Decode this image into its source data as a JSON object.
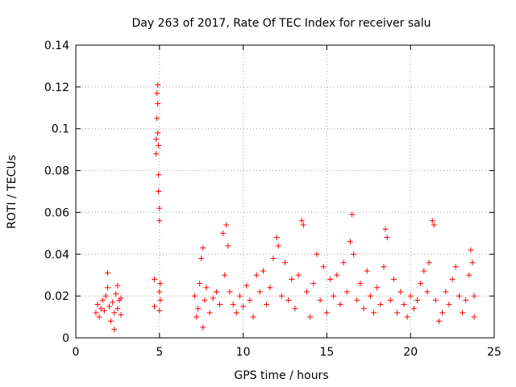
{
  "chart_data": {
    "type": "scatter",
    "title": "Day 263 of 2017, Rate Of TEC Index for receiver salu",
    "xlabel": "GPS time / hours",
    "ylabel": "ROTI / TECUs",
    "xlim": [
      0,
      25
    ],
    "ylim": [
      0,
      0.14
    ],
    "xticks": [
      0,
      5,
      10,
      15,
      20,
      25
    ],
    "xtick_labels": [
      "0",
      "5",
      "10",
      "15",
      "20",
      "25"
    ],
    "yticks": [
      0,
      0.02,
      0.04,
      0.06,
      0.08,
      0.1,
      0.12,
      0.14
    ],
    "ytick_labels": [
      "0",
      "0.02",
      "0.04",
      "0.06",
      "0.08",
      "0.1",
      "0.12",
      "0.14"
    ],
    "grid": true,
    "marker": "plus",
    "color": "#ff0000",
    "series": [
      {
        "name": "ROTI",
        "points": [
          [
            1.2,
            0.012
          ],
          [
            1.3,
            0.016
          ],
          [
            1.4,
            0.01
          ],
          [
            1.5,
            0.014
          ],
          [
            1.6,
            0.018
          ],
          [
            1.7,
            0.013
          ],
          [
            1.8,
            0.02
          ],
          [
            1.9,
            0.024
          ],
          [
            1.9,
            0.031
          ],
          [
            2.0,
            0.015
          ],
          [
            2.1,
            0.008
          ],
          [
            2.2,
            0.017
          ],
          [
            2.3,
            0.004
          ],
          [
            2.3,
            0.012
          ],
          [
            2.4,
            0.021
          ],
          [
            2.5,
            0.014
          ],
          [
            2.5,
            0.025
          ],
          [
            2.6,
            0.018
          ],
          [
            2.7,
            0.011
          ],
          [
            2.7,
            0.019
          ],
          [
            4.7,
            0.028
          ],
          [
            4.7,
            0.015
          ],
          [
            4.8,
            0.095
          ],
          [
            4.8,
            0.088
          ],
          [
            4.85,
            0.105
          ],
          [
            4.85,
            0.117
          ],
          [
            4.9,
            0.121
          ],
          [
            4.9,
            0.112
          ],
          [
            4.9,
            0.098
          ],
          [
            4.95,
            0.092
          ],
          [
            4.95,
            0.078
          ],
          [
            4.95,
            0.07
          ],
          [
            5.0,
            0.062
          ],
          [
            5.0,
            0.056
          ],
          [
            5.0,
            0.022
          ],
          [
            5.0,
            0.013
          ],
          [
            5.05,
            0.018
          ],
          [
            5.05,
            0.026
          ],
          [
            7.1,
            0.02
          ],
          [
            7.2,
            0.01
          ],
          [
            7.3,
            0.014
          ],
          [
            7.4,
            0.026
          ],
          [
            7.5,
            0.038
          ],
          [
            7.6,
            0.043
          ],
          [
            7.6,
            0.005
          ],
          [
            7.7,
            0.018
          ],
          [
            7.8,
            0.024
          ],
          [
            8.0,
            0.012
          ],
          [
            8.2,
            0.019
          ],
          [
            8.4,
            0.022
          ],
          [
            8.6,
            0.016
          ],
          [
            8.8,
            0.05
          ],
          [
            8.9,
            0.03
          ],
          [
            9.0,
            0.054
          ],
          [
            9.1,
            0.044
          ],
          [
            9.2,
            0.022
          ],
          [
            9.4,
            0.016
          ],
          [
            9.6,
            0.012
          ],
          [
            9.8,
            0.02
          ],
          [
            10.0,
            0.015
          ],
          [
            10.2,
            0.025
          ],
          [
            10.4,
            0.018
          ],
          [
            10.6,
            0.01
          ],
          [
            10.8,
            0.03
          ],
          [
            11.0,
            0.022
          ],
          [
            11.2,
            0.032
          ],
          [
            11.4,
            0.016
          ],
          [
            11.6,
            0.024
          ],
          [
            11.8,
            0.038
          ],
          [
            12.0,
            0.048
          ],
          [
            12.1,
            0.044
          ],
          [
            12.3,
            0.02
          ],
          [
            12.5,
            0.036
          ],
          [
            12.7,
            0.018
          ],
          [
            12.9,
            0.028
          ],
          [
            13.1,
            0.014
          ],
          [
            13.3,
            0.03
          ],
          [
            13.5,
            0.056
          ],
          [
            13.6,
            0.054
          ],
          [
            13.8,
            0.022
          ],
          [
            14.0,
            0.01
          ],
          [
            14.2,
            0.026
          ],
          [
            14.4,
            0.04
          ],
          [
            14.6,
            0.018
          ],
          [
            14.8,
            0.034
          ],
          [
            15.0,
            0.012
          ],
          [
            15.2,
            0.028
          ],
          [
            15.4,
            0.02
          ],
          [
            15.6,
            0.03
          ],
          [
            15.8,
            0.016
          ],
          [
            16.0,
            0.036
          ],
          [
            16.2,
            0.022
          ],
          [
            16.4,
            0.046
          ],
          [
            16.5,
            0.059
          ],
          [
            16.6,
            0.04
          ],
          [
            16.8,
            0.018
          ],
          [
            17.0,
            0.026
          ],
          [
            17.2,
            0.014
          ],
          [
            17.4,
            0.032
          ],
          [
            17.6,
            0.02
          ],
          [
            17.8,
            0.012
          ],
          [
            18.0,
            0.024
          ],
          [
            18.2,
            0.016
          ],
          [
            18.4,
            0.034
          ],
          [
            18.5,
            0.052
          ],
          [
            18.6,
            0.048
          ],
          [
            18.8,
            0.018
          ],
          [
            19.0,
            0.028
          ],
          [
            19.2,
            0.012
          ],
          [
            19.4,
            0.022
          ],
          [
            19.6,
            0.016
          ],
          [
            19.8,
            0.01
          ],
          [
            20.0,
            0.02
          ],
          [
            20.2,
            0.014
          ],
          [
            20.4,
            0.018
          ],
          [
            20.6,
            0.026
          ],
          [
            20.8,
            0.032
          ],
          [
            21.0,
            0.022
          ],
          [
            21.1,
            0.036
          ],
          [
            21.3,
            0.056
          ],
          [
            21.4,
            0.054
          ],
          [
            21.5,
            0.018
          ],
          [
            21.7,
            0.008
          ],
          [
            21.9,
            0.012
          ],
          [
            22.1,
            0.022
          ],
          [
            22.3,
            0.016
          ],
          [
            22.5,
            0.028
          ],
          [
            22.7,
            0.034
          ],
          [
            22.9,
            0.02
          ],
          [
            23.1,
            0.012
          ],
          [
            23.3,
            0.018
          ],
          [
            23.5,
            0.03
          ],
          [
            23.6,
            0.042
          ],
          [
            23.7,
            0.036
          ],
          [
            23.8,
            0.02
          ],
          [
            23.8,
            0.01
          ]
        ]
      }
    ]
  }
}
